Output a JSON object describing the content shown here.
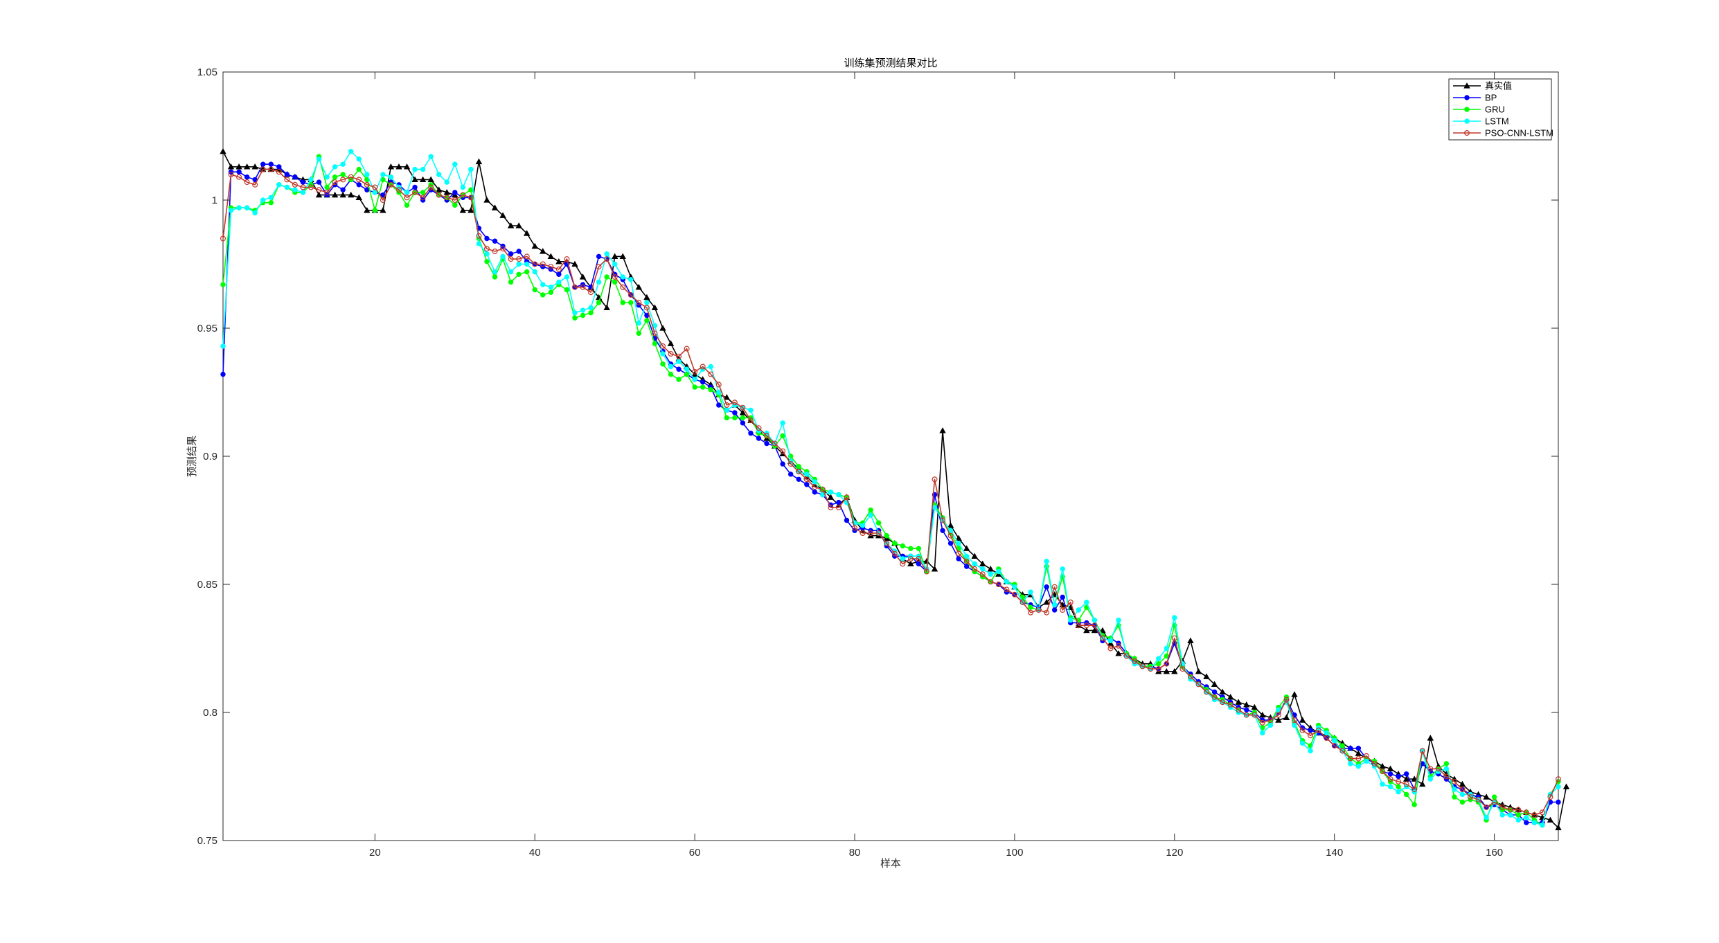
{
  "chart_data": {
    "type": "line",
    "title": "训练集预测结果对比",
    "xlabel": "样本",
    "ylabel": "预测结果",
    "xlim": [
      1,
      168
    ],
    "ylim": [
      0.75,
      1.05
    ],
    "xticks": [
      20,
      40,
      60,
      80,
      100,
      120,
      140,
      160
    ],
    "xtick_labels": [
      "20",
      "40",
      "60",
      "80",
      "100",
      "120",
      "140",
      "160"
    ],
    "yticks": [
      0.75,
      0.8,
      0.85,
      0.9,
      0.95,
      1.0,
      1.05
    ],
    "ytick_labels": [
      "0.75",
      "0.8",
      "0.85",
      "0.9",
      "0.95",
      "1",
      "1.05"
    ],
    "grid": false,
    "legend_position": "top-right",
    "series": [
      {
        "name": "真实值",
        "color": "#000000",
        "marker": "triangle",
        "values": [
          1.019,
          1.013,
          1.013,
          1.013,
          1.013,
          1.012,
          1.012,
          1.012,
          1.01,
          1.009,
          1.008,
          1.008,
          1.002,
          1.002,
          1.002,
          1.002,
          1.002,
          1.001,
          0.996,
          0.996,
          0.996,
          1.013,
          1.013,
          1.013,
          1.008,
          1.008,
          1.008,
          1.004,
          1.003,
          1.002,
          0.996,
          0.996,
          1.015,
          1.0,
          0.997,
          0.994,
          0.99,
          0.99,
          0.987,
          0.982,
          0.98,
          0.978,
          0.976,
          0.976,
          0.975,
          0.97,
          0.966,
          0.962,
          0.958,
          0.978,
          0.978,
          0.97,
          0.966,
          0.962,
          0.958,
          0.95,
          0.944,
          0.938,
          0.935,
          0.932,
          0.93,
          0.928,
          0.924,
          0.923,
          0.92,
          0.917,
          0.914,
          0.91,
          0.907,
          0.904,
          0.901,
          0.898,
          0.895,
          0.892,
          0.889,
          0.887,
          0.884,
          0.881,
          0.884,
          0.875,
          0.871,
          0.869,
          0.869,
          0.868,
          0.866,
          0.86,
          0.858,
          0.859,
          0.859,
          0.856,
          0.91,
          0.873,
          0.868,
          0.864,
          0.861,
          0.858,
          0.856,
          0.854,
          0.851,
          0.849,
          0.846,
          0.846,
          0.841,
          0.843,
          0.846,
          0.842,
          0.841,
          0.834,
          0.832,
          0.832,
          0.832,
          0.827,
          0.823,
          0.823,
          0.821,
          0.819,
          0.819,
          0.816,
          0.816,
          0.816,
          0.82,
          0.828,
          0.816,
          0.814,
          0.811,
          0.808,
          0.806,
          0.804,
          0.803,
          0.802,
          0.799,
          0.798,
          0.797,
          0.798,
          0.807,
          0.797,
          0.794,
          0.792,
          0.791,
          0.79,
          0.788,
          0.786,
          0.784,
          0.782,
          0.781,
          0.779,
          0.778,
          0.776,
          0.774,
          0.774,
          0.772,
          0.79,
          0.779,
          0.776,
          0.774,
          0.772,
          0.769,
          0.768,
          0.767,
          0.765,
          0.764,
          0.763,
          0.762,
          0.761,
          0.76,
          0.759,
          0.758,
          0.755,
          0.771
        ]
      },
      {
        "name": "BP",
        "color": "#0000ff",
        "marker": "circle",
        "values": [
          0.932,
          1.011,
          1.011,
          1.009,
          1.008,
          1.014,
          1.014,
          1.013,
          1.01,
          1.009,
          1.007,
          1.006,
          1.007,
          1.002,
          1.006,
          1.004,
          1.008,
          1.006,
          1.004,
          1.003,
          1.002,
          1.007,
          1.006,
          1.003,
          1.005,
          1.0,
          1.004,
          1.002,
          1.0,
          1.003,
          1.001,
          1.001,
          0.989,
          0.985,
          0.984,
          0.982,
          0.979,
          0.98,
          0.976,
          0.975,
          0.974,
          0.973,
          0.971,
          0.975,
          0.966,
          0.967,
          0.966,
          0.978,
          0.977,
          0.971,
          0.969,
          0.963,
          0.959,
          0.955,
          0.946,
          0.941,
          0.936,
          0.934,
          0.932,
          0.93,
          0.929,
          0.927,
          0.92,
          0.918,
          0.917,
          0.913,
          0.909,
          0.907,
          0.905,
          0.904,
          0.897,
          0.893,
          0.891,
          0.889,
          0.886,
          0.885,
          0.881,
          0.882,
          0.875,
          0.871,
          0.872,
          0.871,
          0.871,
          0.865,
          0.861,
          0.861,
          0.861,
          0.858,
          0.855,
          0.885,
          0.871,
          0.866,
          0.86,
          0.857,
          0.855,
          0.853,
          0.851,
          0.85,
          0.847,
          0.846,
          0.843,
          0.842,
          0.841,
          0.849,
          0.84,
          0.845,
          0.835,
          0.835,
          0.835,
          0.834,
          0.828,
          0.829,
          0.827,
          0.823,
          0.82,
          0.818,
          0.818,
          0.817,
          0.819,
          0.827,
          0.818,
          0.815,
          0.812,
          0.81,
          0.808,
          0.806,
          0.804,
          0.802,
          0.801,
          0.8,
          0.797,
          0.797,
          0.8,
          0.805,
          0.799,
          0.794,
          0.793,
          0.792,
          0.79,
          0.787,
          0.786,
          0.786,
          0.786,
          0.782,
          0.78,
          0.777,
          0.776,
          0.775,
          0.776,
          0.77,
          0.78,
          0.777,
          0.776,
          0.774,
          0.771,
          0.77,
          0.768,
          0.767,
          0.763,
          0.764,
          0.762,
          0.76,
          0.76,
          0.757,
          0.757,
          0.757,
          0.765,
          0.765
        ]
      },
      {
        "name": "GRU",
        "color": "#00ff00",
        "marker": "circle",
        "values": [
          0.967,
          0.997,
          0.997,
          0.997,
          0.996,
          0.999,
          0.999,
          1.006,
          1.005,
          1.003,
          1.003,
          1.006,
          1.017,
          1.005,
          1.009,
          1.01,
          1.008,
          1.012,
          1.008,
          0.996,
          1.008,
          1.006,
          1.003,
          0.998,
          1.003,
          1.003,
          1.006,
          1.002,
          1.001,
          0.998,
          1.002,
          1.004,
          0.985,
          0.976,
          0.97,
          0.977,
          0.968,
          0.971,
          0.972,
          0.965,
          0.963,
          0.964,
          0.967,
          0.965,
          0.954,
          0.955,
          0.956,
          0.96,
          0.97,
          0.968,
          0.96,
          0.96,
          0.948,
          0.953,
          0.944,
          0.936,
          0.932,
          0.93,
          0.932,
          0.927,
          0.927,
          0.926,
          0.924,
          0.915,
          0.915,
          0.915,
          0.915,
          0.909,
          0.908,
          0.904,
          0.908,
          0.9,
          0.896,
          0.894,
          0.891,
          0.887,
          0.886,
          0.885,
          0.884,
          0.874,
          0.874,
          0.879,
          0.874,
          0.869,
          0.866,
          0.865,
          0.864,
          0.864,
          0.855,
          0.881,
          0.876,
          0.87,
          0.864,
          0.859,
          0.855,
          0.853,
          0.851,
          0.856,
          0.851,
          0.85,
          0.845,
          0.841,
          0.84,
          0.857,
          0.842,
          0.853,
          0.837,
          0.836,
          0.841,
          0.836,
          0.83,
          0.829,
          0.834,
          0.823,
          0.821,
          0.818,
          0.818,
          0.819,
          0.822,
          0.834,
          0.818,
          0.814,
          0.811,
          0.809,
          0.806,
          0.805,
          0.803,
          0.801,
          0.799,
          0.8,
          0.794,
          0.796,
          0.802,
          0.806,
          0.796,
          0.789,
          0.787,
          0.795,
          0.793,
          0.79,
          0.787,
          0.782,
          0.78,
          0.782,
          0.781,
          0.777,
          0.773,
          0.771,
          0.768,
          0.764,
          0.785,
          0.775,
          0.778,
          0.78,
          0.767,
          0.765,
          0.766,
          0.765,
          0.758,
          0.767,
          0.762,
          0.762,
          0.76,
          0.761,
          0.758,
          0.756,
          0.768,
          0.773
        ]
      },
      {
        "name": "LSTM",
        "color": "#00ffff",
        "marker": "circle",
        "values": [
          0.943,
          0.996,
          0.997,
          0.997,
          0.995,
          1.0,
          1.001,
          1.006,
          1.005,
          1.004,
          1.003,
          1.008,
          1.016,
          1.009,
          1.013,
          1.014,
          1.019,
          1.016,
          1.01,
          1.003,
          1.01,
          1.009,
          1.005,
          1.003,
          1.012,
          1.012,
          1.017,
          1.01,
          1.007,
          1.014,
          1.005,
          1.012,
          0.983,
          0.979,
          0.972,
          0.978,
          0.972,
          0.975,
          0.975,
          0.972,
          0.967,
          0.966,
          0.968,
          0.97,
          0.956,
          0.957,
          0.958,
          0.968,
          0.979,
          0.975,
          0.97,
          0.969,
          0.952,
          0.96,
          0.951,
          0.94,
          0.935,
          0.937,
          0.934,
          0.93,
          0.934,
          0.935,
          0.925,
          0.918,
          0.92,
          0.919,
          0.918,
          0.91,
          0.909,
          0.905,
          0.913,
          0.898,
          0.894,
          0.893,
          0.89,
          0.885,
          0.886,
          0.885,
          0.882,
          0.874,
          0.873,
          0.877,
          0.87,
          0.866,
          0.863,
          0.86,
          0.861,
          0.861,
          0.856,
          0.88,
          0.875,
          0.871,
          0.866,
          0.861,
          0.858,
          0.856,
          0.854,
          0.855,
          0.851,
          0.849,
          0.843,
          0.847,
          0.84,
          0.859,
          0.842,
          0.856,
          0.836,
          0.84,
          0.843,
          0.836,
          0.829,
          0.828,
          0.836,
          0.822,
          0.819,
          0.818,
          0.817,
          0.821,
          0.825,
          0.837,
          0.819,
          0.813,
          0.811,
          0.808,
          0.805,
          0.804,
          0.802,
          0.8,
          0.799,
          0.799,
          0.792,
          0.795,
          0.801,
          0.804,
          0.795,
          0.788,
          0.785,
          0.794,
          0.792,
          0.789,
          0.785,
          0.78,
          0.779,
          0.781,
          0.779,
          0.772,
          0.771,
          0.769,
          0.771,
          0.769,
          0.785,
          0.774,
          0.777,
          0.778,
          0.77,
          0.768,
          0.768,
          0.766,
          0.759,
          0.765,
          0.76,
          0.76,
          0.758,
          0.759,
          0.757,
          0.756,
          0.768,
          0.771
        ]
      },
      {
        "name": "PSO-CNN-LSTM",
        "color": "#c0392b",
        "marker": "open-circle",
        "values": [
          0.985,
          1.01,
          1.009,
          1.007,
          1.006,
          1.012,
          1.012,
          1.011,
          1.008,
          1.006,
          1.005,
          1.005,
          1.004,
          1.003,
          1.007,
          1.008,
          1.009,
          1.008,
          1.006,
          1.005,
          1.0,
          1.006,
          1.004,
          1.001,
          1.003,
          1.001,
          1.005,
          1.002,
          1.001,
          1.0,
          1.002,
          1.001,
          0.986,
          0.981,
          0.98,
          0.981,
          0.977,
          0.977,
          0.978,
          0.975,
          0.975,
          0.974,
          0.973,
          0.977,
          0.966,
          0.966,
          0.964,
          0.974,
          0.977,
          0.97,
          0.966,
          0.963,
          0.96,
          0.958,
          0.948,
          0.943,
          0.94,
          0.939,
          0.942,
          0.933,
          0.935,
          0.932,
          0.928,
          0.92,
          0.921,
          0.919,
          0.914,
          0.911,
          0.908,
          0.905,
          0.902,
          0.897,
          0.894,
          0.891,
          0.888,
          0.887,
          0.88,
          0.88,
          0.884,
          0.872,
          0.87,
          0.87,
          0.87,
          0.866,
          0.862,
          0.858,
          0.86,
          0.86,
          0.855,
          0.891,
          0.875,
          0.869,
          0.862,
          0.859,
          0.856,
          0.854,
          0.851,
          0.85,
          0.848,
          0.846,
          0.843,
          0.839,
          0.84,
          0.839,
          0.849,
          0.84,
          0.843,
          0.834,
          0.834,
          0.834,
          0.829,
          0.825,
          0.826,
          0.822,
          0.82,
          0.818,
          0.817,
          0.817,
          0.819,
          0.829,
          0.817,
          0.814,
          0.811,
          0.808,
          0.806,
          0.804,
          0.803,
          0.801,
          0.799,
          0.799,
          0.796,
          0.797,
          0.799,
          0.805,
          0.797,
          0.793,
          0.791,
          0.793,
          0.79,
          0.787,
          0.785,
          0.782,
          0.782,
          0.783,
          0.78,
          0.777,
          0.774,
          0.773,
          0.772,
          0.77,
          0.785,
          0.778,
          0.778,
          0.775,
          0.773,
          0.77,
          0.767,
          0.766,
          0.763,
          0.765,
          0.763,
          0.762,
          0.762,
          0.761,
          0.76,
          0.761,
          0.767,
          0.774
        ]
      }
    ]
  }
}
